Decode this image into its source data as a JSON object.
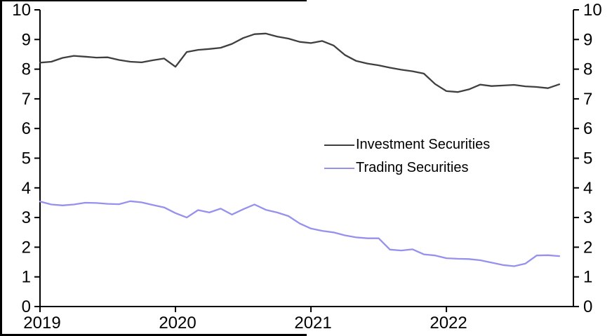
{
  "chart_data": {
    "type": "line",
    "title": "",
    "x": {
      "start": "2019-01",
      "frequency": "monthly",
      "tick_labels": [
        "2019",
        "2020",
        "2021",
        "2022"
      ],
      "tick_month_indices": [
        0,
        12,
        24,
        36
      ]
    },
    "y": {
      "min": 0,
      "max": 10,
      "tick_step": 1,
      "left_tick_labels": [
        "0",
        "1",
        "2",
        "3",
        "4",
        "5",
        "6",
        "7",
        "8",
        "9",
        "10"
      ],
      "right_tick_labels": [
        "0",
        "1",
        "2",
        "3",
        "4",
        "5",
        "6",
        "7",
        "8",
        "9",
        "10"
      ]
    },
    "series": [
      {
        "name": "Investment Securities",
        "color": "#3F3F3F",
        "values": [
          8.22,
          8.25,
          8.38,
          8.45,
          8.42,
          8.39,
          8.4,
          8.31,
          8.25,
          8.23,
          8.3,
          8.36,
          8.08,
          8.58,
          8.65,
          8.68,
          8.72,
          8.85,
          9.05,
          9.18,
          9.2,
          9.1,
          9.03,
          8.92,
          8.88,
          8.95,
          8.8,
          8.48,
          8.28,
          8.19,
          8.13,
          8.05,
          7.98,
          7.93,
          7.85,
          7.5,
          7.26,
          7.23,
          7.32,
          7.48,
          7.43,
          7.45,
          7.47,
          7.42,
          7.4,
          7.36,
          7.49
        ]
      },
      {
        "name": "Trading Securities",
        "color": "#9691ED",
        "values": [
          3.54,
          3.44,
          3.41,
          3.44,
          3.5,
          3.49,
          3.46,
          3.45,
          3.55,
          3.51,
          3.42,
          3.34,
          3.15,
          3.0,
          3.25,
          3.17,
          3.3,
          3.1,
          3.28,
          3.44,
          3.26,
          3.17,
          3.05,
          2.8,
          2.63,
          2.55,
          2.5,
          2.4,
          2.33,
          2.3,
          2.3,
          1.92,
          1.89,
          1.93,
          1.76,
          1.72,
          1.63,
          1.61,
          1.6,
          1.56,
          1.48,
          1.4,
          1.36,
          1.45,
          1.72,
          1.73,
          1.7
        ]
      }
    ],
    "legend": {
      "position": "center-right",
      "entries": [
        "Investment Securities",
        "Trading Securities"
      ]
    },
    "grid": false
  },
  "colors": {
    "axis": "#000000",
    "background": "#FFFFFF",
    "frame_border": "#000000"
  }
}
